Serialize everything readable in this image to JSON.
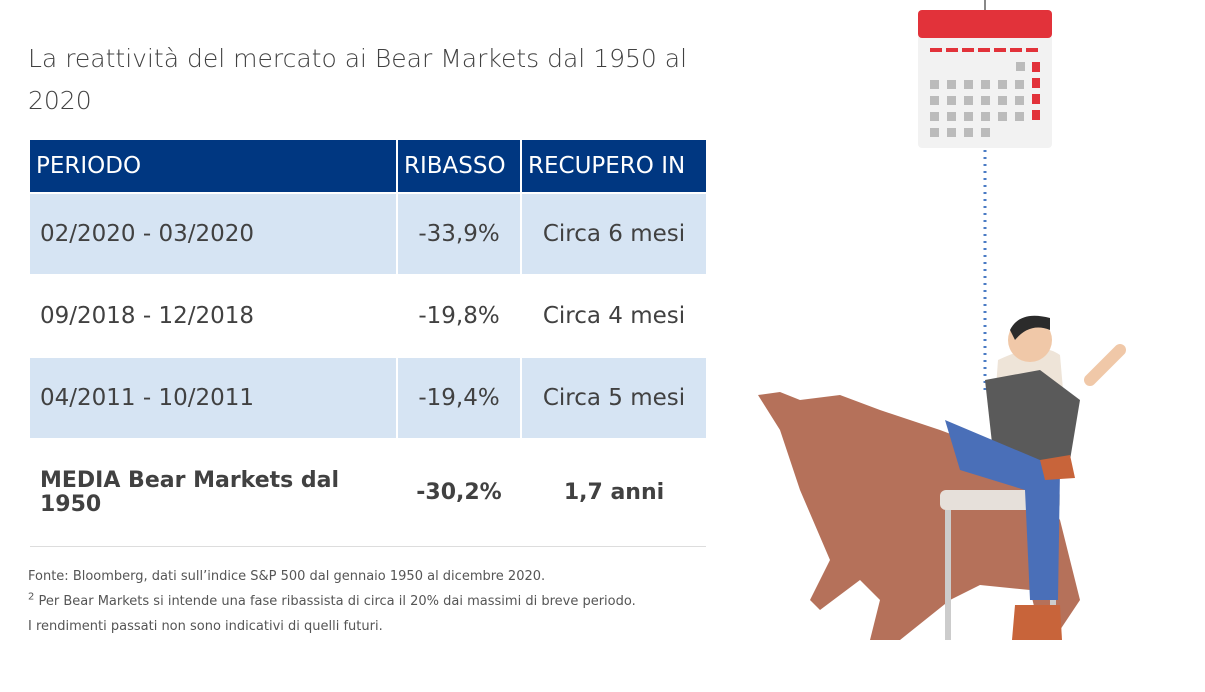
{
  "header": {
    "title": "La reattività del mercato ai Bear Markets dal 1950 al 2020"
  },
  "table": {
    "columns": [
      "PERIODO",
      "RIBASSO",
      "RECUPERO IN"
    ],
    "rows": [
      [
        "02/2020 - 03/2020",
        "-33,9%",
        "Circa 6 mesi"
      ],
      [
        "09/2018 - 12/2018",
        "-19,8%",
        "Circa 4 mesi"
      ],
      [
        "04/2011 - 10/2011",
        "-19,4%",
        "Circa 5 mesi"
      ],
      [
        "MEDIA Bear Markets dal 1950",
        "-30,2%",
        "1,7 anni"
      ]
    ]
  },
  "footnotes": [
    {
      "text": "Fonte: Bloomberg, dati sull’indice S&P 500 dal gennaio 1950 al dicembre 2020."
    },
    {
      "sup": "2",
      "text": " Per Bear Markets si intende una fase ribassista di circa il 20% dai massimi di breve periodo."
    },
    {
      "text": "I rendimenti passati non sono indicativi di quelli futuri."
    }
  ]
}
